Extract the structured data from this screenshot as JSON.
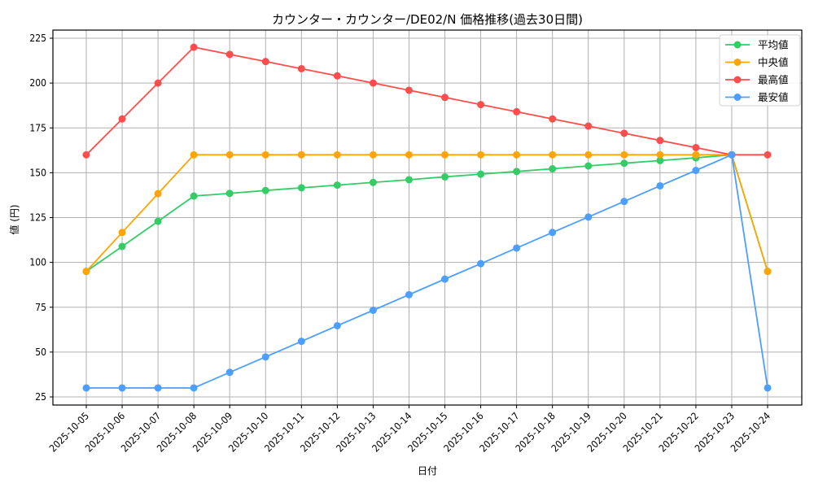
{
  "chart_data": {
    "type": "line",
    "title": "カウンター・カウンター/DE02/N 価格推移(過去30日間)",
    "xlabel": "日付",
    "ylabel": "値 (円)",
    "ylim": [
      20,
      230
    ],
    "yticks": [
      25,
      50,
      75,
      100,
      125,
      150,
      175,
      200,
      225
    ],
    "grid": true,
    "legend_position": "upper right",
    "x": [
      "2025-10-05",
      "2025-10-06",
      "2025-10-07",
      "2025-10-08",
      "2025-10-09",
      "2025-10-10",
      "2025-10-11",
      "2025-10-12",
      "2025-10-13",
      "2025-10-14",
      "2025-10-15",
      "2025-10-16",
      "2025-10-17",
      "2025-10-18",
      "2025-10-19",
      "2025-10-20",
      "2025-10-21",
      "2025-10-22",
      "2025-10-23",
      "2025-10-24"
    ],
    "series": [
      {
        "name": "平均値",
        "color": "#33cc66",
        "values": [
          95,
          108.9,
          122.9,
          137.0,
          138.5,
          140.1,
          141.6,
          143.1,
          144.6,
          146.1,
          147.7,
          149.2,
          150.7,
          152.2,
          153.8,
          155.3,
          156.8,
          158.3,
          160,
          95
        ]
      },
      {
        "name": "中央値",
        "color": "#ffa500",
        "values": [
          95,
          116.7,
          138.3,
          160,
          160,
          160,
          160,
          160,
          160,
          160,
          160,
          160,
          160,
          160,
          160,
          160,
          160,
          160,
          160,
          95
        ]
      },
      {
        "name": "最高値",
        "color": "#ff4d4d",
        "values": [
          160,
          180,
          200,
          220,
          216,
          212,
          208,
          204,
          200,
          196,
          192,
          188,
          184,
          180,
          176,
          172,
          168,
          164,
          160,
          160
        ]
      },
      {
        "name": "最安値",
        "color": "#4d9fff",
        "values": [
          30,
          30,
          30,
          30,
          38.7,
          47.3,
          56,
          64.7,
          73.3,
          82,
          90.7,
          99.3,
          108,
          116.7,
          125.3,
          134,
          142.7,
          151.3,
          160,
          30
        ]
      }
    ]
  },
  "colors": {
    "background": "#ffffff",
    "grid": "#b0b0b0",
    "frame": "#000000"
  }
}
